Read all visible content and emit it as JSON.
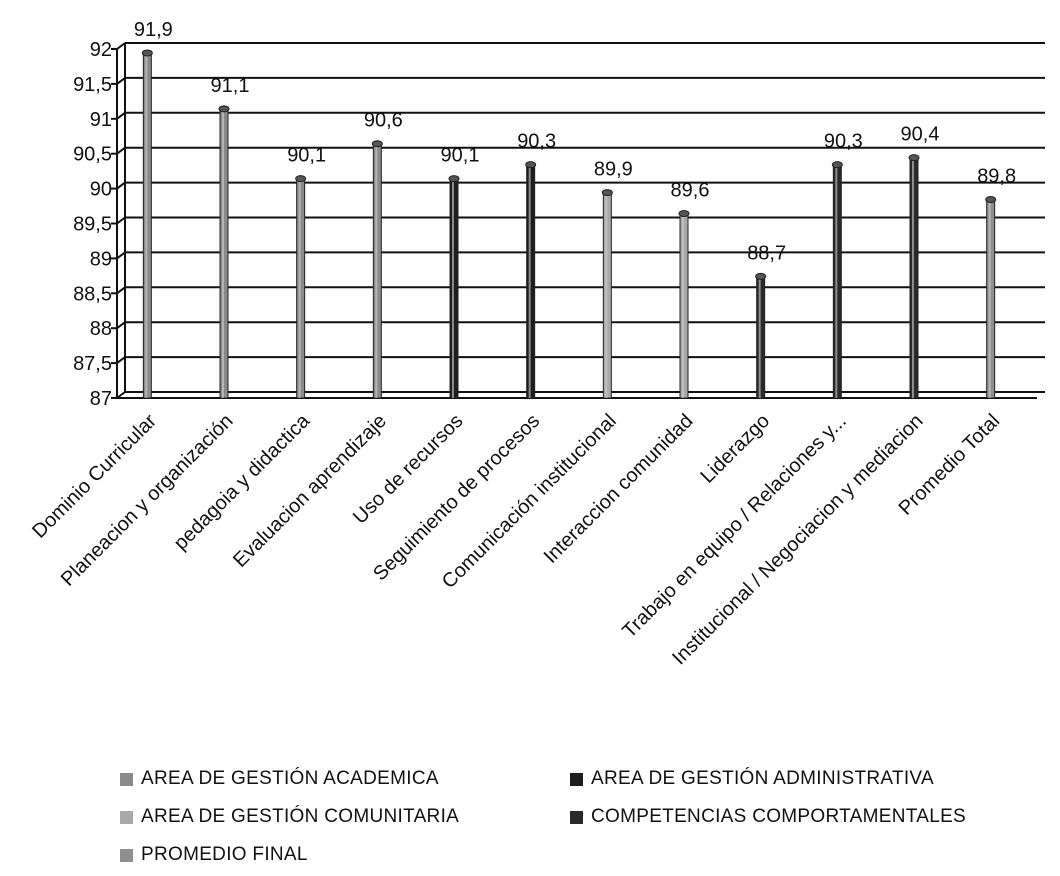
{
  "chart_data": {
    "type": "bar",
    "categories": [
      "Dominio Curricular",
      "Planeacion y organización",
      "pedagoia y didactica",
      "Evaluacion aprendizaje",
      "Uso de recursos",
      "Seguimiento de procesos",
      "Comunicación institucional",
      "Interaccion comunidad",
      "Liderazgo",
      "Trabajo en equipo / Relaciones y...",
      "Institucional / Negociacion y mediacion",
      "Promedio Total"
    ],
    "values": [
      91.9,
      91.1,
      90.1,
      90.6,
      90.1,
      90.3,
      89.9,
      89.6,
      88.7,
      90.3,
      90.4,
      89.8
    ],
    "value_labels": [
      "91,9",
      "91,1",
      "90,1",
      "90,6",
      "90,1",
      "90,3",
      "89,9",
      "89,6",
      "88,7",
      "90,3",
      "90,4",
      "89,8"
    ],
    "bar_series": [
      0,
      0,
      0,
      0,
      1,
      1,
      2,
      2,
      3,
      3,
      3,
      4
    ],
    "ylim": [
      87,
      92
    ],
    "yticks": [
      87,
      87.5,
      88,
      88.5,
      89,
      89.5,
      90,
      90.5,
      91,
      91.5,
      92
    ],
    "ytick_labels": [
      "87",
      "87,5",
      "88",
      "88,5",
      "89",
      "89,5",
      "90",
      "90,5",
      "91",
      "91,5",
      "92"
    ],
    "grid": true,
    "legend_position": "bottom",
    "series": [
      {
        "name": "AREA DE GESTIÓN ACADEMICA",
        "color": "#8a8a8a"
      },
      {
        "name": "AREA DE GESTIÓN ADMINISTRATIVA",
        "color": "#1e1e1e"
      },
      {
        "name": "AREA DE GESTIÓN COMUNITARIA",
        "color": "#a9a9a9"
      },
      {
        "name": "COMPETENCIAS COMPORTAMENTALES",
        "color": "#2a2a2a"
      },
      {
        "name": "PROMEDIO FINAL",
        "color": "#8f8f8f"
      }
    ]
  }
}
